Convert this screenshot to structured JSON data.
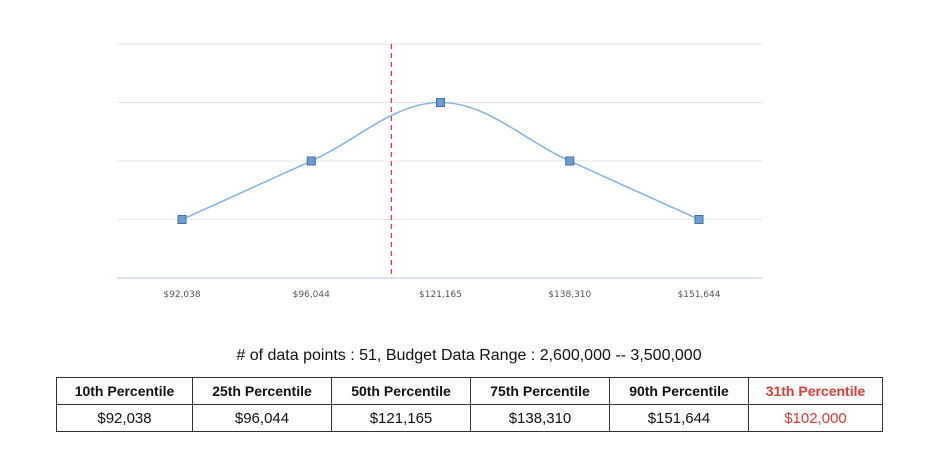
{
  "chart_data": {
    "type": "line",
    "categories": [
      "$92,038",
      "$96,044",
      "$121,165",
      "$138,310",
      "$151,644"
    ],
    "values": [
      1,
      2,
      3,
      2,
      1
    ],
    "ylim": [
      -0.0,
      4
    ],
    "grid": true,
    "smooth": true,
    "marker_line_position_category": 1.62,
    "colors": {
      "line": "#87b6e3",
      "marker_fill": "#6a9fd6",
      "marker_stroke": "#4a6d99",
      "marker_line": "#e53935",
      "grid": "#e6e6e6",
      "axis": "#b7cbe0"
    }
  },
  "summary": "# of data points : 51, Budget Data Range : 2,600,000 -- 3,500,000",
  "table": {
    "headers": [
      "10th Percentile",
      "25th Percentile",
      "50th Percentile",
      "75th Percentile",
      "90th Percentile",
      "31th Percentile"
    ],
    "values": [
      "$92,038",
      "$96,044",
      "$121,165",
      "$138,310",
      "$151,644",
      "$102,000"
    ],
    "highlight_color": "#e53935"
  }
}
